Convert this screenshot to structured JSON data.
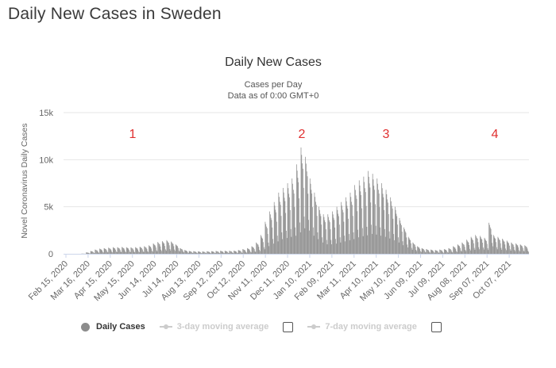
{
  "page_title": "Daily New Cases in Sweden",
  "chart_data": {
    "type": "bar",
    "title": "Daily New Cases",
    "subtitle_line1": "Cases per Day",
    "subtitle_line2": "Data as of 0:00 GMT+0",
    "ylabel": "Novel Coronavirus Daily Cases",
    "xlabel": "",
    "ylim": [
      0,
      15000
    ],
    "y_ticks": [
      0,
      5000,
      10000,
      15000
    ],
    "y_tick_labels": [
      "0",
      "5k",
      "10k",
      "15k"
    ],
    "grid": true,
    "x_tick_labels": [
      "Feb 15, 2020",
      "Mar 16, 2020",
      "Apr 15, 2020",
      "May 15, 2020",
      "Jun 14, 2020",
      "Jul 14, 2020",
      "Aug 13, 2020",
      "Sep 12, 2020",
      "Oct 12, 2020",
      "Nov 11, 2020",
      "Dec 11, 2020",
      "Jan 10, 2021",
      "Feb 09, 2021",
      "Mar 11, 2021",
      "Apr 10, 2021",
      "May 10, 2021",
      "Jun 09, 2021",
      "Jul 09, 2021",
      "Aug 08, 2021",
      "Sep 07, 2021",
      "Oct 07, 2021"
    ],
    "annotations": [
      "1",
      "2",
      "3",
      "4"
    ],
    "bar_color": "#8c8c8c",
    "annotation_color": "#e03030",
    "series": [
      {
        "name": "Daily Cases",
        "start_date": "Feb 15, 2020",
        "weekly_peaks": [
          0,
          0,
          0,
          0,
          20,
          150,
          300,
          450,
          550,
          600,
          650,
          700,
          700,
          720,
          700,
          680,
          700,
          750,
          800,
          900,
          1100,
          1250,
          1350,
          1450,
          1300,
          1000,
          600,
          400,
          300,
          280,
          260,
          250,
          270,
          280,
          300,
          320,
          320,
          320,
          330,
          400,
          500,
          600,
          800,
          1200,
          2000,
          3400,
          4500,
          5500,
          6500,
          7000,
          7500,
          8000,
          9500,
          11300,
          10300,
          8000,
          6500,
          5000,
          4200,
          4200,
          4500,
          5000,
          5500,
          6000,
          6500,
          7300,
          7800,
          8200,
          8800,
          8500,
          8000,
          7500,
          6800,
          6000,
          5000,
          3800,
          2800,
          1800,
          1200,
          800,
          600,
          500,
          450,
          400,
          450,
          500,
          600,
          800,
          1000,
          1200,
          1500,
          1800,
          2000,
          1900,
          1700,
          3300,
          2000,
          1800,
          1600,
          1400,
          1200,
          1100,
          1000,
          900
        ],
        "weekly_pattern": [
          1.0,
          0.93,
          0.85,
          0.8,
          0.62,
          0.35,
          0.24
        ]
      }
    ],
    "legend": [
      {
        "label": "Daily Cases",
        "enabled": true
      },
      {
        "label": "3-day moving average",
        "enabled": false
      },
      {
        "label": "7-day moving average",
        "enabled": false
      }
    ]
  }
}
